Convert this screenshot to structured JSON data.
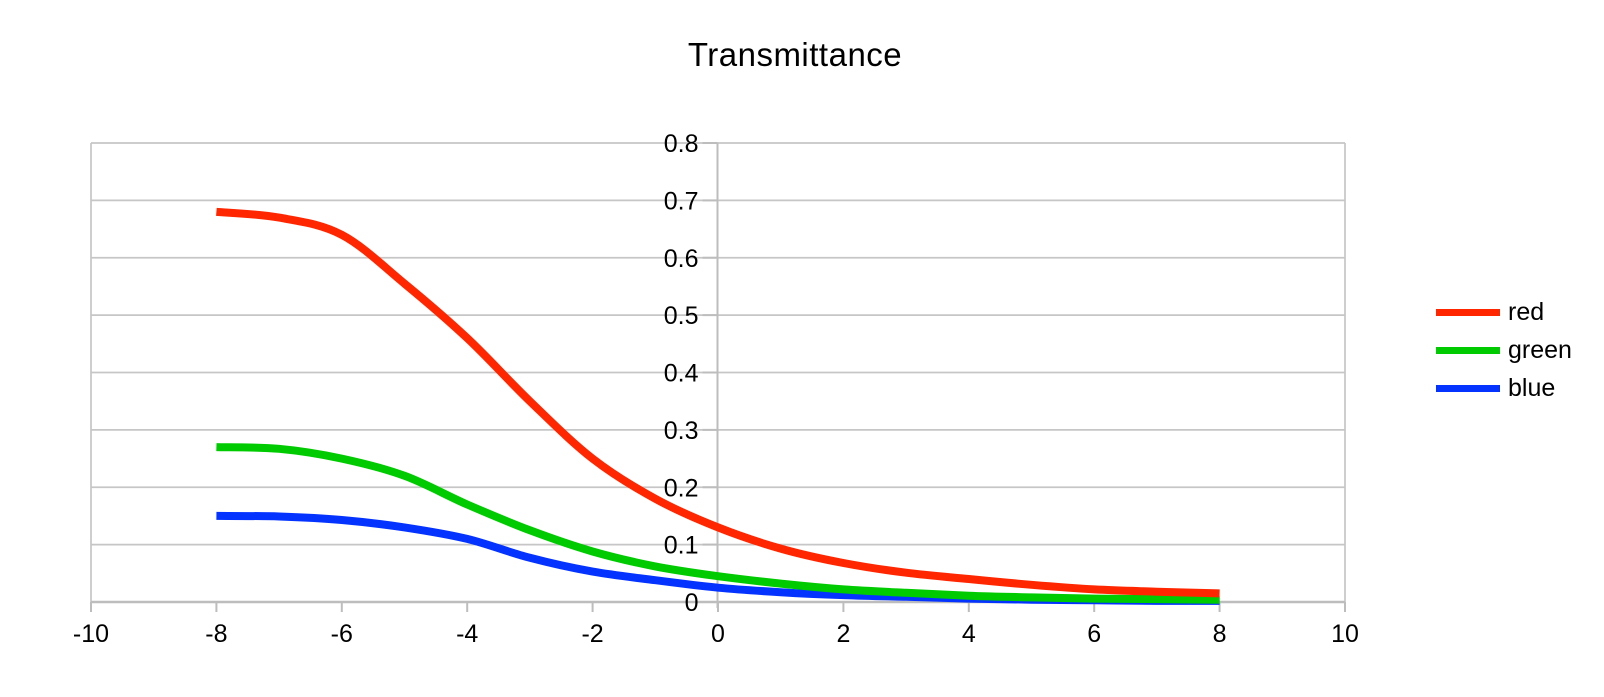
{
  "chart_data": {
    "type": "line",
    "title": "Transmittance",
    "xlabel": "",
    "ylabel": "",
    "xlim": [
      -10,
      10
    ],
    "ylim": [
      0,
      0.8
    ],
    "xticks": [
      -10,
      -8,
      -6,
      -4,
      -2,
      0,
      2,
      4,
      6,
      8,
      10
    ],
    "yticks": [
      0,
      0.1,
      0.2,
      0.3,
      0.4,
      0.5,
      0.6,
      0.7,
      0.8
    ],
    "grid": "horizontal",
    "legend_position": "right",
    "x": [
      -8,
      -7,
      -6,
      -5,
      -4,
      -3,
      -2,
      -1,
      0,
      1,
      2,
      3,
      4,
      5,
      6,
      7,
      8
    ],
    "series": [
      {
        "name": "red",
        "color": "#ff2600",
        "values": [
          0.68,
          0.67,
          0.64,
          0.555,
          0.46,
          0.35,
          0.25,
          0.18,
          0.13,
          0.093,
          0.068,
          0.051,
          0.04,
          0.03,
          0.022,
          0.018,
          0.015
        ]
      },
      {
        "name": "green",
        "color": "#00cb00",
        "values": [
          0.27,
          0.267,
          0.25,
          0.22,
          0.17,
          0.125,
          0.088,
          0.062,
          0.045,
          0.032,
          0.022,
          0.016,
          0.011,
          0.008,
          0.006,
          0.005,
          0.004
        ]
      },
      {
        "name": "blue",
        "color": "#0433ff",
        "values": [
          0.15,
          0.149,
          0.143,
          0.13,
          0.11,
          0.077,
          0.053,
          0.038,
          0.025,
          0.017,
          0.012,
          0.009,
          0.006,
          0.004,
          0.003,
          0.002,
          0.002
        ]
      }
    ],
    "colors": {
      "gridline": "#c6c6c6",
      "axis": "#bdbdbd",
      "text": "#000000",
      "background": "#ffffff"
    }
  }
}
